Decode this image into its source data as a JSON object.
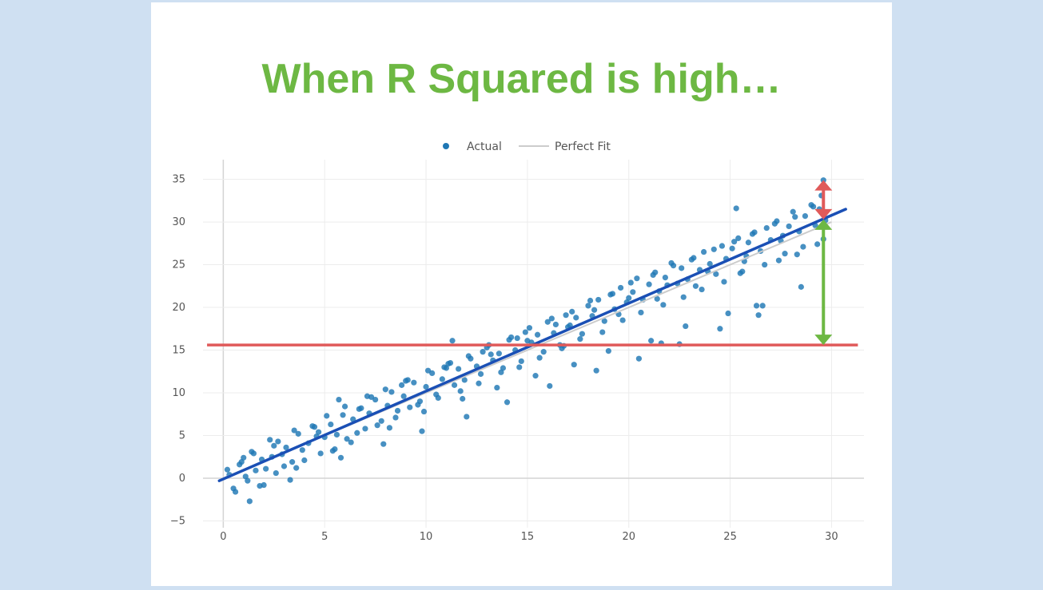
{
  "slide": {
    "title": "When R Squared is high…"
  },
  "colors": {
    "background": "#cfe0f2",
    "title": "#6db843",
    "points": "#1f77b4",
    "regression_line": "#1a4fb5",
    "perfect_fit": "#cccccc",
    "mean_line": "#e05a5a",
    "explained_arrow": "#6db843",
    "residual_arrow": "#e05a5a"
  },
  "chart_data": {
    "type": "scatter",
    "legend": {
      "placement": "top-center",
      "entries": [
        {
          "label": "Actual",
          "marker": "dot"
        },
        {
          "label": "Perfect Fit",
          "marker": "line"
        }
      ]
    },
    "xlim": [
      -1.0,
      31.6
    ],
    "ylim": [
      -5.8,
      37.3
    ],
    "xticks": [
      0,
      5,
      10,
      15,
      20,
      25,
      30
    ],
    "yticks": [
      -5,
      0,
      5,
      10,
      15,
      20,
      25,
      30,
      35
    ],
    "xtick_labels": [
      "0",
      "5",
      "10",
      "15",
      "20",
      "25",
      "30"
    ],
    "ytick_labels": [
      "−5",
      "0",
      "5",
      "10",
      "15",
      "20",
      "25",
      "30",
      "35"
    ],
    "grid": true,
    "series": [
      {
        "name": "Actual",
        "mode": "markers",
        "x": [
          0.3,
          0.5,
          0.8,
          1.0,
          1.2,
          1.4,
          1.6,
          1.9,
          2.1,
          2.3,
          2.6,
          2.9,
          3.1,
          3.4,
          3.7,
          3.9,
          4.2,
          4.5,
          4.8,
          5.0,
          5.3,
          5.6,
          5.9,
          6.1,
          6.4,
          6.7,
          7.0,
          7.2,
          7.5,
          7.8,
          8.1,
          8.3,
          8.6,
          8.9,
          9.2,
          9.4,
          9.7,
          10.0,
          10.3,
          10.5,
          10.8,
          11.1,
          11.4,
          11.6,
          11.9,
          12.2,
          12.5,
          12.7,
          13.0,
          13.3,
          13.6,
          13.8,
          14.1,
          14.4,
          14.7,
          14.9,
          15.2,
          15.5,
          15.8,
          16.0,
          16.3,
          16.6,
          16.9,
          17.1,
          17.4,
          17.7,
          18.0,
          18.2,
          18.5,
          18.8,
          19.1,
          19.3,
          19.6,
          19.9,
          20.2,
          20.4,
          20.7,
          21.0,
          21.3,
          21.5,
          21.8,
          22.1,
          22.4,
          22.6,
          22.9,
          23.2,
          23.5,
          23.7,
          24.0,
          24.3,
          24.6,
          24.8,
          25.1,
          25.4,
          25.7,
          25.9,
          26.2,
          26.5,
          26.8,
          27.0,
          27.3,
          27.6,
          27.9,
          28.1,
          28.4,
          28.7,
          29.0,
          29.2,
          29.5,
          29.7,
          0.6,
          1.1,
          1.5,
          2.0,
          2.5,
          3.0,
          3.5,
          4.0,
          4.6,
          5.1,
          5.5,
          6.0,
          6.6,
          7.1,
          7.6,
          8.0,
          8.5,
          9.1,
          9.6,
          10.1,
          10.6,
          11.2,
          11.7,
          12.1,
          12.6,
          13.1,
          13.7,
          14.2,
          14.6,
          15.1,
          15.6,
          16.2,
          16.7,
          17.2,
          17.6,
          18.1,
          18.7,
          19.2,
          19.7,
          20.1,
          20.6,
          21.2,
          21.7,
          22.2,
          22.7,
          23.1,
          23.6,
          24.2,
          24.7,
          25.2,
          25.6,
          26.1,
          26.7,
          27.2,
          27.7,
          28.2,
          28.6,
          29.1,
          29.6,
          0.9,
          1.8,
          2.7,
          3.6,
          4.4,
          5.4,
          6.3,
          7.3,
          8.2,
          9.0,
          9.9,
          10.9,
          11.8,
          12.8,
          13.5,
          14.5,
          15.4,
          16.4,
          17.3,
          18.3,
          19.0,
          20.0,
          21.1,
          21.9,
          22.8,
          23.9,
          24.9,
          25.8,
          26.6,
          27.5,
          28.5,
          29.4,
          1.3,
          2.4,
          3.3,
          4.7,
          5.8,
          6.8,
          7.9,
          8.8,
          9.8,
          11.0,
          12.0,
          13.2,
          14.0,
          15.0,
          16.1,
          17.0,
          18.4,
          19.5,
          20.5,
          21.4,
          22.5,
          23.3,
          24.5,
          25.5,
          26.4,
          27.4,
          28.3,
          29.3,
          5.7,
          11.3,
          21.6,
          25.3,
          26.3,
          16.8,
          0.2,
          29.6
        ],
        "y": [
          0.4,
          -1.2,
          1.6,
          2.4,
          -0.3,
          3.1,
          0.9,
          2.2,
          1.1,
          4.5,
          0.6,
          2.8,
          3.6,
          1.9,
          5.2,
          3.3,
          4.1,
          6.0,
          2.9,
          4.8,
          6.3,
          5.1,
          7.4,
          4.6,
          6.9,
          8.1,
          5.8,
          7.6,
          9.2,
          6.7,
          8.5,
          10.1,
          7.9,
          9.6,
          8.3,
          11.2,
          9.0,
          10.7,
          12.3,
          9.8,
          11.6,
          13.4,
          10.9,
          12.8,
          11.5,
          14.0,
          13.1,
          12.2,
          15.3,
          13.8,
          14.6,
          12.9,
          16.2,
          15.0,
          13.7,
          17.1,
          15.9,
          16.8,
          14.8,
          18.3,
          17.0,
          15.6,
          19.1,
          17.9,
          18.8,
          16.9,
          20.2,
          19.0,
          20.9,
          18.4,
          21.5,
          19.8,
          22.3,
          20.6,
          21.8,
          23.4,
          20.9,
          22.7,
          24.1,
          21.9,
          23.5,
          25.2,
          22.8,
          24.6,
          23.3,
          25.8,
          24.4,
          26.5,
          25.1,
          23.9,
          27.2,
          25.7,
          26.9,
          28.1,
          25.4,
          27.6,
          28.8,
          26.6,
          29.3,
          27.9,
          30.1,
          28.4,
          29.5,
          31.2,
          28.9,
          30.7,
          32.0,
          29.6,
          33.1,
          30.2,
          -1.6,
          0.2,
          2.9,
          -0.8,
          3.8,
          1.4,
          5.6,
          2.1,
          4.9,
          7.3,
          3.4,
          8.4,
          5.3,
          9.6,
          6.2,
          10.4,
          7.1,
          11.5,
          8.6,
          12.6,
          9.4,
          13.5,
          10.2,
          14.3,
          11.1,
          15.6,
          12.4,
          16.5,
          13.0,
          17.6,
          14.1,
          18.7,
          15.2,
          19.5,
          16.3,
          20.8,
          17.1,
          21.6,
          18.5,
          22.9,
          19.4,
          23.8,
          20.3,
          24.9,
          21.2,
          25.6,
          22.1,
          26.8,
          23.0,
          27.7,
          24.2,
          28.6,
          25.0,
          29.8,
          26.3,
          30.6,
          27.1,
          31.8,
          28.0,
          1.9,
          -0.9,
          4.3,
          1.2,
          6.1,
          3.2,
          4.2,
          9.5,
          5.9,
          11.4,
          7.8,
          13.0,
          9.3,
          14.8,
          10.6,
          16.4,
          12.0,
          18.0,
          13.3,
          19.7,
          14.9,
          21.1,
          16.1,
          22.6,
          17.8,
          24.2,
          19.3,
          26.0,
          20.2,
          27.8,
          22.4,
          31.5,
          -2.7,
          2.5,
          -0.2,
          5.4,
          2.4,
          8.2,
          4.0,
          10.9,
          5.5,
          12.9,
          7.2,
          14.5,
          8.9,
          16.1,
          10.8,
          17.7,
          12.6,
          19.2,
          14.0,
          21.0,
          15.7,
          22.5,
          17.5,
          24.0,
          19.1,
          25.5,
          26.2,
          27.4,
          9.2,
          16.1,
          15.8,
          31.6,
          20.2,
          15.5,
          1.0,
          34.9
        ]
      },
      {
        "name": "Perfect Fit",
        "mode": "line",
        "x": [
          0,
          30
        ],
        "y": [
          0,
          30
        ]
      }
    ],
    "annotations": {
      "regression_line": {
        "x": [
          -0.2,
          30.7
        ],
        "y": [
          -0.3,
          31.5
        ]
      },
      "mean_line": {
        "x": [
          -0.8,
          31.3
        ],
        "y": 15.6
      },
      "explained_arrow": {
        "x": 29.6,
        "y_from": 15.6,
        "y_to": 30.3
      },
      "residual_arrow": {
        "x": 29.6,
        "y_from": 30.3,
        "y_to": 34.9
      }
    }
  }
}
